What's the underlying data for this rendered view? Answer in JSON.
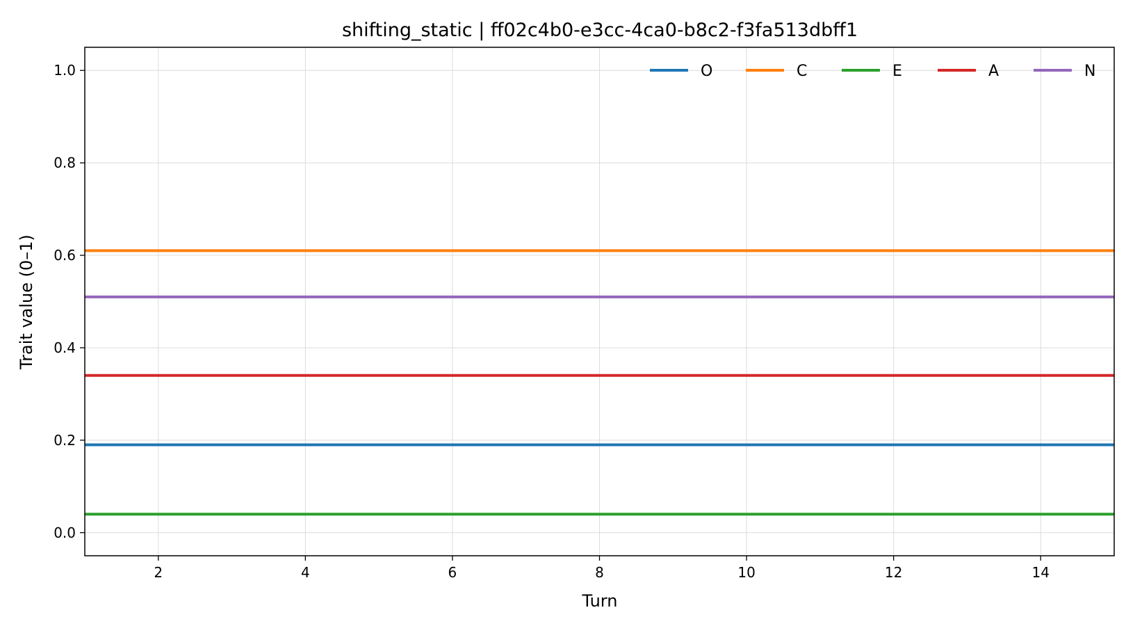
{
  "chart_data": {
    "type": "line",
    "title": "shifting_static | ff02c4b0-e3cc-4ca0-b8c2-f3fa513dbff1",
    "xlabel": "Turn",
    "ylabel": "Trait value (0–1)",
    "xlim": [
      1,
      15
    ],
    "ylim": [
      -0.05,
      1.05
    ],
    "xticks": [
      2,
      4,
      6,
      8,
      10,
      12,
      14
    ],
    "yticks": [
      0.0,
      0.2,
      0.4,
      0.6,
      0.8,
      1.0
    ],
    "ytick_labels": [
      "0.0",
      "0.2",
      "0.4",
      "0.6",
      "0.8",
      "1.0"
    ],
    "grid": true,
    "legend_position": "top-right",
    "x": [
      1,
      2,
      3,
      4,
      5,
      6,
      7,
      8,
      9,
      10,
      11,
      12,
      13,
      14,
      15
    ],
    "series": [
      {
        "name": "O",
        "color": "#1f77b4",
        "values": [
          0.19,
          0.19,
          0.19,
          0.19,
          0.19,
          0.19,
          0.19,
          0.19,
          0.19,
          0.19,
          0.19,
          0.19,
          0.19,
          0.19,
          0.19
        ]
      },
      {
        "name": "C",
        "color": "#ff7f0e",
        "values": [
          0.61,
          0.61,
          0.61,
          0.61,
          0.61,
          0.61,
          0.61,
          0.61,
          0.61,
          0.61,
          0.61,
          0.61,
          0.61,
          0.61,
          0.61
        ]
      },
      {
        "name": "E",
        "color": "#2ca02c",
        "values": [
          0.04,
          0.04,
          0.04,
          0.04,
          0.04,
          0.04,
          0.04,
          0.04,
          0.04,
          0.04,
          0.04,
          0.04,
          0.04,
          0.04,
          0.04
        ]
      },
      {
        "name": "A",
        "color": "#d62728",
        "values": [
          0.34,
          0.34,
          0.34,
          0.34,
          0.34,
          0.34,
          0.34,
          0.34,
          0.34,
          0.34,
          0.34,
          0.34,
          0.34,
          0.34,
          0.34
        ]
      },
      {
        "name": "N",
        "color": "#9467bd",
        "values": [
          0.51,
          0.51,
          0.51,
          0.51,
          0.51,
          0.51,
          0.51,
          0.51,
          0.51,
          0.51,
          0.51,
          0.51,
          0.51,
          0.51,
          0.51
        ]
      }
    ]
  }
}
